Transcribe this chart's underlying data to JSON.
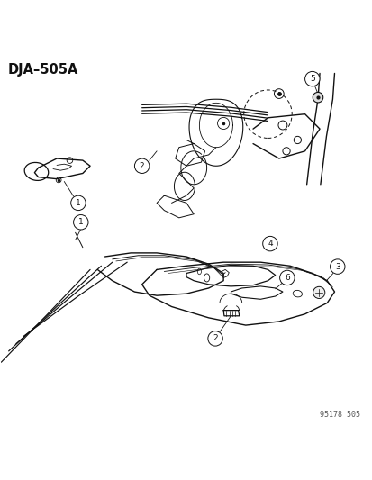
{
  "title": "DJA–505A",
  "footer": "95178 505",
  "bg_color": "#ffffff",
  "text_color": "#111111",
  "line_color": "#111111",
  "fig_width": 4.14,
  "fig_height": 5.33,
  "dpi": 100
}
